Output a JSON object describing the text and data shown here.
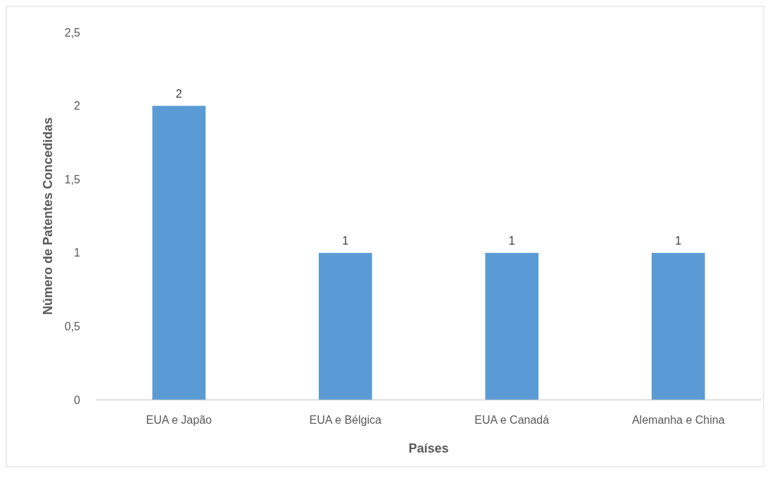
{
  "chart_data": {
    "type": "bar",
    "xlabel": "Países",
    "ylabel": "Número de Patentes Concedidas",
    "categories": [
      "EUA e Japão",
      "EUA e Bélgica",
      "EUA e Canadá",
      "Alemanha e China"
    ],
    "values": [
      2,
      1,
      1,
      1
    ],
    "color": "#5b9bd5",
    "data_labels": true,
    "ylim": [
      0,
      2.5
    ],
    "yticks": [
      0,
      {
        "value": 0.5,
        "label": "0,5"
      },
      1,
      {
        "value": 1.5,
        "label": "1,5"
      },
      2,
      {
        "value": 2.5,
        "label": "2,5"
      }
    ]
  }
}
